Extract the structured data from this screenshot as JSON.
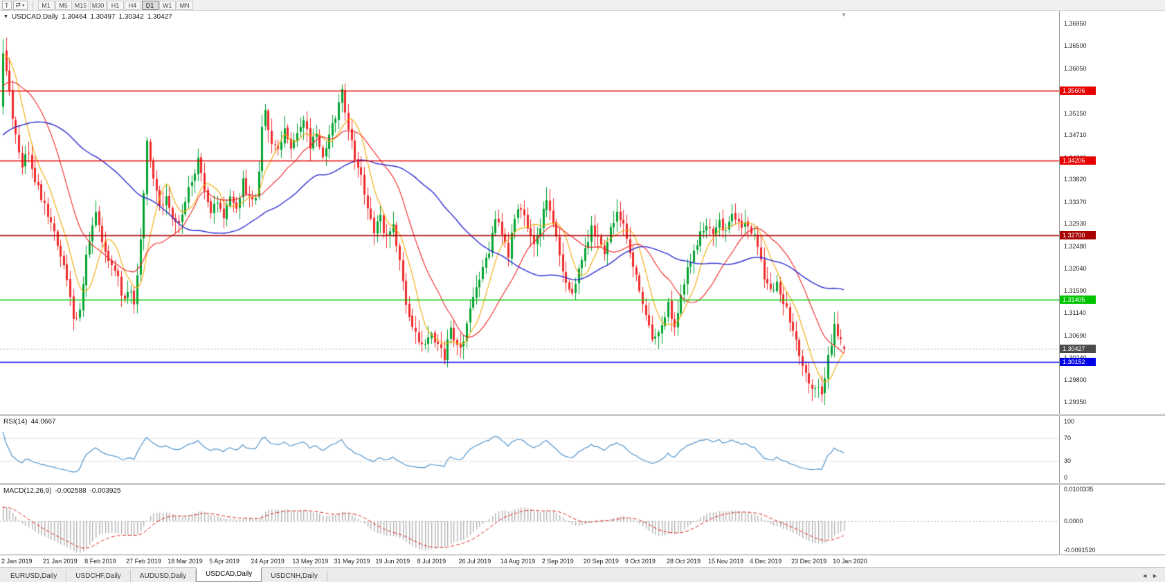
{
  "toolbar": {
    "chart_type_button": "T",
    "cycle_icon": "⇄",
    "caret_icon": "▾",
    "timeframes": [
      "M1",
      "M5",
      "M15",
      "M30",
      "H1",
      "H4",
      "D1",
      "W1",
      "MN"
    ],
    "active_timeframe": "D1"
  },
  "chart": {
    "title": "USDCAD,Daily",
    "collapse_icon": "▼",
    "shift_marker_icon": "▼",
    "ohlc": {
      "open": "1.30464",
      "high": "1.30497",
      "low": "1.30342",
      "close": "1.30427"
    }
  },
  "chart_data": {
    "type": "candlestick",
    "symbol": "USDCAD",
    "timeframe": "Daily",
    "bars": 264,
    "last_bar": {
      "open": 1.30464,
      "high": 1.30497,
      "low": 1.30342,
      "close": 1.30427
    },
    "price_axis": {
      "ticks": [
        "1.36950",
        "1.36500",
        "1.36050",
        "1.35600",
        "1.35150",
        "1.34710",
        "1.34260",
        "1.33820",
        "1.33370",
        "1.32930",
        "1.32480",
        "1.32040",
        "1.31590",
        "1.31140",
        "1.30690",
        "1.30240",
        "1.29800",
        "1.29350"
      ],
      "top_price": 1.3695,
      "bottom_price": 1.2935
    },
    "horizontal_lines": [
      {
        "price": 1.35606,
        "label": "1.35606",
        "color": "#e60000",
        "text_color": "#ffffff",
        "style": "solid"
      },
      {
        "price": 1.34206,
        "label": "1.34206",
        "color": "#e60000",
        "text_color": "#ffffff",
        "style": "solid"
      },
      {
        "price": 1.327,
        "label": "1.32700",
        "color": "#a80000",
        "text_color": "#ffffff",
        "style": "solid"
      },
      {
        "price": 1.31405,
        "label": "1.31405",
        "color": "#00c400",
        "text_color": "#ffffff",
        "style": "solid"
      },
      {
        "price": 1.30152,
        "label": "1.30152",
        "color": "#0000e6",
        "text_color": "#ffffff",
        "style": "solid"
      }
    ],
    "current_price": {
      "price": 1.30427,
      "label": "1.30427",
      "color": "#4a4a4a",
      "text_color": "#ffffff",
      "line_color": "#9a9a9a",
      "style": "dotted"
    },
    "candle_colors": {
      "up": "#00a32e",
      "down": "#ef2929"
    },
    "moving_averages": [
      {
        "period": 8,
        "color": "#f5a800"
      },
      {
        "period": 20,
        "color": "#f02020"
      },
      {
        "period": 55,
        "color": "#2a2ad2"
      }
    ],
    "close_anchor_points": [
      [
        0,
        1.3636
      ],
      [
        2,
        1.356
      ],
      [
        4,
        1.3465
      ],
      [
        6,
        1.341
      ],
      [
        8,
        1.3438
      ],
      [
        10,
        1.3385
      ],
      [
        13,
        1.333
      ],
      [
        15,
        1.3302
      ],
      [
        17,
        1.3252
      ],
      [
        19,
        1.3212
      ],
      [
        21,
        1.3155
      ],
      [
        22,
        1.3098
      ],
      [
        24,
        1.3125
      ],
      [
        26,
        1.3228
      ],
      [
        29,
        1.332
      ],
      [
        31,
        1.3262
      ],
      [
        33,
        1.3222
      ],
      [
        36,
        1.3182
      ],
      [
        38,
        1.3135
      ],
      [
        40,
        1.3158
      ],
      [
        41,
        1.3122
      ],
      [
        43,
        1.3252
      ],
      [
        45,
        1.3455
      ],
      [
        47,
        1.3392
      ],
      [
        49,
        1.3335
      ],
      [
        51,
        1.3342
      ],
      [
        53,
        1.3312
      ],
      [
        55,
        1.3285
      ],
      [
        57,
        1.3338
      ],
      [
        59,
        1.3378
      ],
      [
        61,
        1.3428
      ],
      [
        63,
        1.3352
      ],
      [
        65,
        1.3322
      ],
      [
        67,
        1.3342
      ],
      [
        69,
        1.3312
      ],
      [
        71,
        1.3352
      ],
      [
        73,
        1.3322
      ],
      [
        75,
        1.3378
      ],
      [
        77,
        1.3342
      ],
      [
        79,
        1.3335
      ],
      [
        81,
        1.3478
      ],
      [
        82,
        1.3518
      ],
      [
        84,
        1.3462
      ],
      [
        86,
        1.3442
      ],
      [
        88,
        1.3478
      ],
      [
        90,
        1.3442
      ],
      [
        92,
        1.3468
      ],
      [
        94,
        1.3498
      ],
      [
        96,
        1.3452
      ],
      [
        98,
        1.3478
      ],
      [
        100,
        1.3432
      ],
      [
        102,
        1.3468
      ],
      [
        104,
        1.3502
      ],
      [
        106,
        1.3556
      ],
      [
        108,
        1.3482
      ],
      [
        110,
        1.3422
      ],
      [
        112,
        1.3382
      ],
      [
        114,
        1.3322
      ],
      [
        116,
        1.3282
      ],
      [
        118,
        1.3302
      ],
      [
        120,
        1.3262
      ],
      [
        122,
        1.3288
      ],
      [
        124,
        1.3218
      ],
      [
        126,
        1.3132
      ],
      [
        128,
        1.3092
      ],
      [
        130,
        1.3062
      ],
      [
        132,
        1.3042
      ],
      [
        134,
        1.3072
      ],
      [
        136,
        1.3052
      ],
      [
        138,
        1.3028
      ],
      [
        140,
        1.3078
      ],
      [
        142,
        1.3042
      ],
      [
        144,
        1.3062
      ],
      [
        146,
        1.3118
      ],
      [
        148,
        1.3158
      ],
      [
        150,
        1.3208
      ],
      [
        152,
        1.3238
      ],
      [
        154,
        1.3308
      ],
      [
        156,
        1.3272
      ],
      [
        158,
        1.3232
      ],
      [
        160,
        1.3298
      ],
      [
        162,
        1.3328
      ],
      [
        164,
        1.3282
      ],
      [
        166,
        1.3262
      ],
      [
        168,
        1.3292
      ],
      [
        170,
        1.3342
      ],
      [
        172,
        1.3292
      ],
      [
        174,
        1.3232
      ],
      [
        176,
        1.3182
      ],
      [
        178,
        1.3152
      ],
      [
        180,
        1.3202
      ],
      [
        182,
        1.3242
      ],
      [
        184,
        1.3288
      ],
      [
        186,
        1.3262
      ],
      [
        188,
        1.3242
      ],
      [
        190,
        1.3278
      ],
      [
        192,
        1.3318
      ],
      [
        194,
        1.3298
      ],
      [
        196,
        1.3242
      ],
      [
        198,
        1.3182
      ],
      [
        200,
        1.3132
      ],
      [
        202,
        1.3082
      ],
      [
        204,
        1.3058
      ],
      [
        206,
        1.3092
      ],
      [
        208,
        1.3128
      ],
      [
        210,
        1.3082
      ],
      [
        212,
        1.3148
      ],
      [
        214,
        1.3198
      ],
      [
        216,
        1.3238
      ],
      [
        218,
        1.3278
      ],
      [
        220,
        1.3298
      ],
      [
        222,
        1.3272
      ],
      [
        224,
        1.3298
      ],
      [
        226,
        1.3282
      ],
      [
        228,
        1.3308
      ],
      [
        230,
        1.3292
      ],
      [
        232,
        1.3298
      ],
      [
        234,
        1.3282
      ],
      [
        236,
        1.3252
      ],
      [
        238,
        1.3182
      ],
      [
        240,
        1.3162
      ],
      [
        242,
        1.3172
      ],
      [
        244,
        1.3132
      ],
      [
        246,
        1.3102
      ],
      [
        248,
        1.3062
      ],
      [
        250,
        1.3012
      ],
      [
        252,
        1.2982
      ],
      [
        254,
        1.2962
      ],
      [
        256,
        1.2952
      ],
      [
        257,
        1.2988
      ],
      [
        258,
        1.3022
      ],
      [
        259,
        1.3058
      ],
      [
        260,
        1.3088
      ],
      [
        261,
        1.3062
      ],
      [
        262,
        1.3052
      ],
      [
        263,
        1.30427
      ]
    ],
    "time_axis": {
      "bars_per_label": 13,
      "labels": [
        "2 Jan 2019",
        "21 Jan 2019",
        "8 Feb 2019",
        "27 Feb 2019",
        "18 Mar 2019",
        "5 Apr 2019",
        "24 Apr 2019",
        "13 May 2019",
        "31 May 2019",
        "19 Jun 2019",
        "8 Jul 2019",
        "26 Jul 2019",
        "14 Aug 2019",
        "2 Sep 2019",
        "20 Sep 2019",
        "9 Oct 2019",
        "28 Oct 2019",
        "15 Nov 2019",
        "4 Dec 2019",
        "23 Dec 2019",
        "10 Jan 2020"
      ]
    },
    "indicators": {
      "rsi": {
        "label": "RSI(14)",
        "current_value": "44.0667",
        "period": 14,
        "levels": [
          100,
          70,
          30,
          0
        ],
        "dashed_levels": [
          70,
          30
        ],
        "color": "#4f94cd"
      },
      "macd": {
        "label": "MACD(12,26,9)",
        "main_value": "-0.002588",
        "signal_value": "-0.003925",
        "axis_labels": [
          "0.0100335",
          "0.0000",
          "-0.0091520"
        ],
        "axis_top": 0.0100335,
        "axis_bottom": -0.009152,
        "histogram_color": "#b2b2b2",
        "signal_color": "#e02020"
      }
    }
  },
  "tabs": {
    "items": [
      "EURUSD,Daily",
      "USDCHF,Daily",
      "AUDUSD,Daily",
      "USDCAD,Daily",
      "USDCNH,Daily"
    ],
    "active_index": 3,
    "scroll_left_icon": "◄",
    "scroll_right_icon": "►"
  }
}
